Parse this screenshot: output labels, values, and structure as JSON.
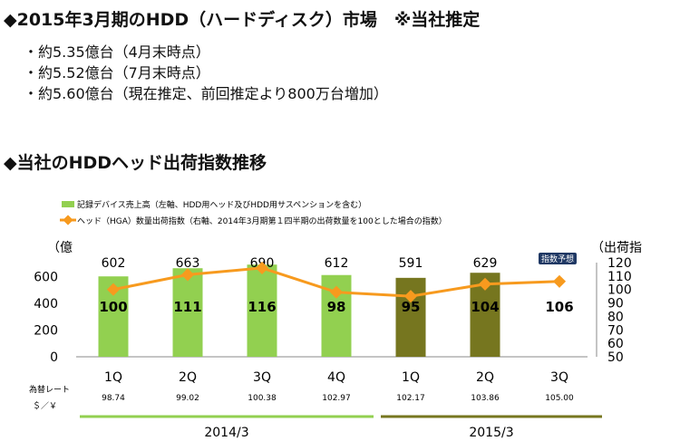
{
  "heading1": "◆2015年3月期のHDD（ハードディスク）市場　※当社推定",
  "bullets": [
    "・約5.35億台（4月末時点）",
    "・約5.52億台（7月末時点）",
    "・約5.60億台（現在推定、前回推定より800万台増加）"
  ],
  "heading2": "◆当社のHDDヘッド出荷指数推移",
  "colors": {
    "bar_2014": "#92d050",
    "bar_2015": "#76761f",
    "line": "#f79a1e",
    "year_line_2014": "#92d050",
    "year_line_2015": "#76761f",
    "badge_bg": "#1f3864"
  },
  "chart_data": {
    "type": "bar+line",
    "categories": [
      "1Q",
      "2Q",
      "3Q",
      "4Q",
      "1Q",
      "2Q",
      "3Q"
    ],
    "legend": [
      "記録デバイス売上高（左軸、HDD用ヘッド及びHDD用サスペンションを含む）",
      "ヘッド（HGA）数量出荷指数（右軸、2014年3月期第１四半期の出荷数量を100とした場合の指数）"
    ],
    "series": [
      {
        "name": "記録デバイス売上高（左軸、HDD用ヘッド及びHDD用サスペンションを含む）",
        "type": "bar",
        "axis": "left",
        "values": [
          602,
          663,
          690,
          612,
          591,
          629,
          null
        ]
      },
      {
        "name": "ヘッド（HGA）数量出荷指数（右軸、2014年3月期第１四半期の出荷数量を100とした場合の指数）",
        "type": "line",
        "axis": "right",
        "values": [
          100,
          111,
          116,
          98,
          95,
          104,
          106
        ]
      }
    ],
    "left_axis": {
      "label": "（億",
      "ylim": [
        0,
        690
      ],
      "ticks": [
        0,
        200,
        400,
        600
      ]
    },
    "right_axis": {
      "label": "（出荷指",
      "ylim": [
        50,
        120
      ],
      "ticks": [
        50,
        60,
        70,
        80,
        90,
        100,
        110,
        120
      ]
    },
    "forecast_badge": "指数予想",
    "fx_label_1": "為替レート",
    "fx_label_2": "＄／￥",
    "fx_rates": [
      "98.74",
      "99.02",
      "100.38",
      "102.97",
      "102.17",
      "103.86",
      "105.00"
    ],
    "fiscal_years": [
      {
        "label": "2014/3",
        "start": 0,
        "end": 3
      },
      {
        "label": "2015/3",
        "start": 4,
        "end": 6
      }
    ]
  }
}
